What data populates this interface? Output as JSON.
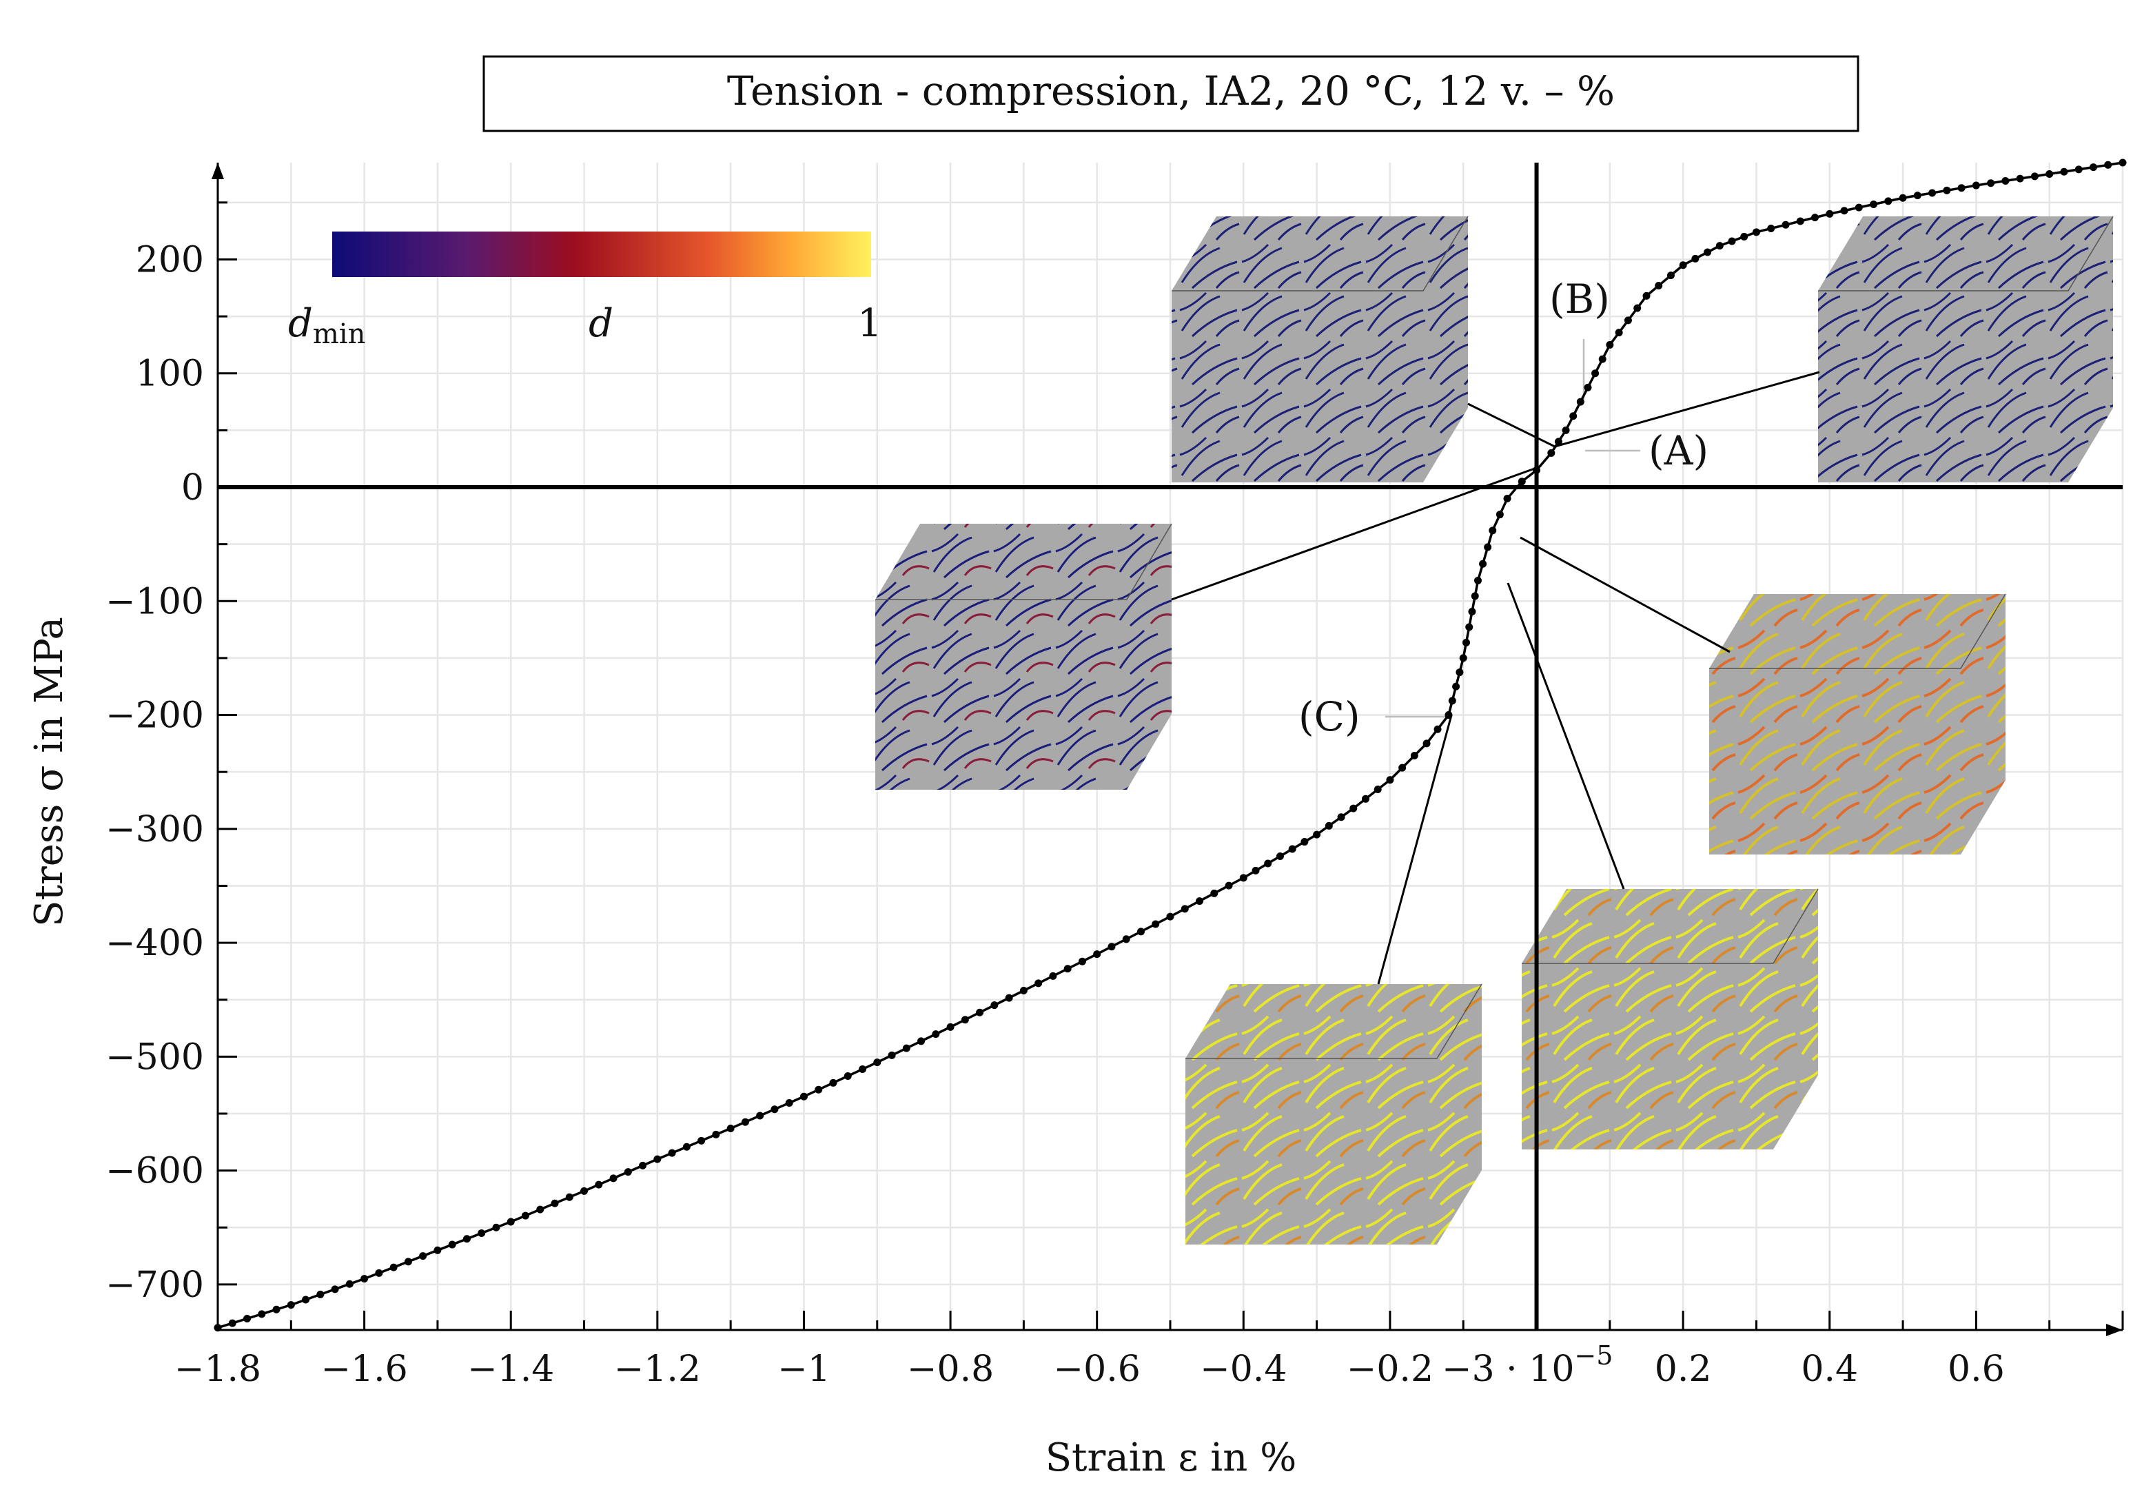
{
  "chart_data": {
    "type": "line",
    "title": "Tension - compression, IA2, 20 °C, 12 v. – %",
    "xlabel": "Strain ε in %",
    "ylabel": "Stress σ in MPa",
    "xlim": [
      -1.8,
      0.8
    ],
    "ylim": [
      -740,
      285
    ],
    "xticks": [
      -1.8,
      -1.6,
      -1.4,
      -1.2,
      -1.0,
      -0.8,
      -0.6,
      -0.4,
      -0.2,
      0.2,
      0.4,
      0.6
    ],
    "xtick_labels": [
      "−1.8",
      "−1.6",
      "−1.4",
      "−1.2",
      "−1",
      "−0.8",
      "−0.6",
      "−0.4",
      "−0.2",
      "0.2",
      "0.4",
      "0.6"
    ],
    "x_offset_label": "−3 · 10",
    "x_offset_exp": "−5",
    "yticks": [
      200,
      100,
      0,
      -100,
      -200,
      -300,
      -400,
      -500,
      -600,
      -700
    ],
    "ytick_labels": [
      "200",
      "100",
      "0",
      "−100",
      "−200",
      "−300",
      "−400",
      "−500",
      "−600",
      "−700"
    ],
    "grid": true,
    "series": [
      {
        "marker": "dot",
        "color": "#000000",
        "x": [
          -1.8,
          -1.7,
          -1.6,
          -1.5,
          -1.4,
          -1.3,
          -1.2,
          -1.1,
          -1.0,
          -0.9,
          -0.8,
          -0.7,
          -0.6,
          -0.5,
          -0.4,
          -0.3,
          -0.25,
          -0.2,
          -0.15,
          -0.12,
          -0.1,
          -0.08,
          -0.06,
          -0.04,
          -0.02,
          0.0,
          0.02,
          0.04,
          0.06,
          0.08,
          0.1,
          0.15,
          0.2,
          0.25,
          0.3,
          0.4,
          0.5,
          0.6,
          0.7,
          0.8
        ],
        "y": [
          -738,
          -718,
          -695,
          -670,
          -645,
          -618,
          -590,
          -563,
          -535,
          -505,
          -474,
          -442,
          -410,
          -377,
          -343,
          -305,
          -282,
          -257,
          -225,
          -200,
          -150,
          -82,
          -38,
          -10,
          5,
          15,
          30,
          50,
          75,
          100,
          125,
          168,
          195,
          212,
          224,
          240,
          254,
          265,
          275,
          285
        ]
      }
    ],
    "annotations": [
      {
        "label": "(A)",
        "x": 0.01,
        "y": 35
      },
      {
        "label": "(B)",
        "x": 0.05,
        "y": 75
      },
      {
        "label": "(C)",
        "x": -0.1,
        "y": -200
      }
    ],
    "colorbar": {
      "label_min": "d",
      "label_min_sub": "min",
      "label_mid": "d",
      "label_max": "1",
      "colors": [
        "#0d0b78",
        "#5a1a6e",
        "#9c0d1f",
        "#e6572b",
        "#ffa835",
        "#fff25e"
      ]
    }
  }
}
